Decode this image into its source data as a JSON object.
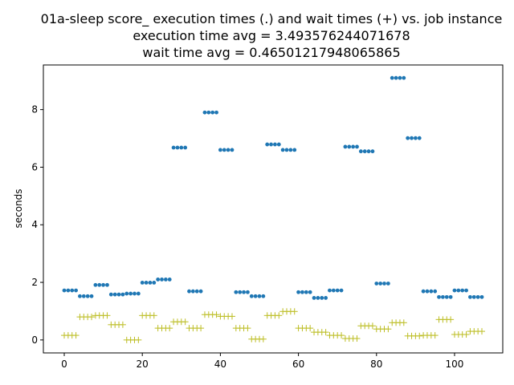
{
  "chart_data": {
    "type": "scatter",
    "title_lines": [
      "01a-sleep score_ execution times (.) and wait times (+) vs. job instance",
      "execution time avg = 3.493576244071678",
      "wait time avg = 0.46501217948065865"
    ],
    "xlabel": "",
    "ylabel": "seconds",
    "xlim": [
      -5.35,
      112.35
    ],
    "ylim": [
      -0.45,
      9.55
    ],
    "xticks": [
      0,
      20,
      40,
      60,
      80,
      100
    ],
    "yticks": [
      0,
      2,
      4,
      6,
      8
    ],
    "grid": false,
    "series": [
      {
        "marker": "dot",
        "color": "#1f77b4",
        "points": [
          [
            0,
            1.72
          ],
          [
            1,
            1.72
          ],
          [
            2,
            1.72
          ],
          [
            3,
            1.72
          ],
          [
            4,
            1.52
          ],
          [
            5,
            1.52
          ],
          [
            6,
            1.52
          ],
          [
            7,
            1.52
          ],
          [
            8,
            1.91
          ],
          [
            9,
            1.91
          ],
          [
            10,
            1.91
          ],
          [
            11,
            1.91
          ],
          [
            12,
            1.58
          ],
          [
            13,
            1.58
          ],
          [
            14,
            1.58
          ],
          [
            15,
            1.58
          ],
          [
            16,
            1.61
          ],
          [
            17,
            1.61
          ],
          [
            18,
            1.61
          ],
          [
            19,
            1.61
          ],
          [
            20,
            1.99
          ],
          [
            21,
            1.99
          ],
          [
            22,
            1.99
          ],
          [
            23,
            1.99
          ],
          [
            24,
            2.1
          ],
          [
            25,
            2.1
          ],
          [
            26,
            2.1
          ],
          [
            27,
            2.1
          ],
          [
            28,
            6.68
          ],
          [
            29,
            6.68
          ],
          [
            30,
            6.68
          ],
          [
            31,
            6.68
          ],
          [
            32,
            1.69
          ],
          [
            33,
            1.69
          ],
          [
            34,
            1.69
          ],
          [
            35,
            1.69
          ],
          [
            36,
            7.9
          ],
          [
            37,
            7.9
          ],
          [
            38,
            7.9
          ],
          [
            39,
            7.9
          ],
          [
            40,
            6.6
          ],
          [
            41,
            6.6
          ],
          [
            42,
            6.6
          ],
          [
            43,
            6.6
          ],
          [
            44,
            1.66
          ],
          [
            45,
            1.66
          ],
          [
            46,
            1.66
          ],
          [
            47,
            1.66
          ],
          [
            48,
            1.52
          ],
          [
            49,
            1.52
          ],
          [
            50,
            1.52
          ],
          [
            51,
            1.52
          ],
          [
            52,
            6.79
          ],
          [
            53,
            6.79
          ],
          [
            54,
            6.79
          ],
          [
            55,
            6.79
          ],
          [
            56,
            6.6
          ],
          [
            57,
            6.6
          ],
          [
            58,
            6.6
          ],
          [
            59,
            6.6
          ],
          [
            60,
            1.66
          ],
          [
            61,
            1.66
          ],
          [
            62,
            1.66
          ],
          [
            63,
            1.66
          ],
          [
            64,
            1.46
          ],
          [
            65,
            1.46
          ],
          [
            66,
            1.46
          ],
          [
            67,
            1.46
          ],
          [
            68,
            1.72
          ],
          [
            69,
            1.72
          ],
          [
            70,
            1.72
          ],
          [
            71,
            1.72
          ],
          [
            72,
            6.71
          ],
          [
            73,
            6.71
          ],
          [
            74,
            6.71
          ],
          [
            75,
            6.71
          ],
          [
            76,
            6.55
          ],
          [
            77,
            6.55
          ],
          [
            78,
            6.55
          ],
          [
            79,
            6.55
          ],
          [
            80,
            1.96
          ],
          [
            81,
            1.96
          ],
          [
            82,
            1.96
          ],
          [
            83,
            1.96
          ],
          [
            84,
            9.1
          ],
          [
            85,
            9.1
          ],
          [
            86,
            9.1
          ],
          [
            87,
            9.1
          ],
          [
            88,
            7.01
          ],
          [
            89,
            7.01
          ],
          [
            90,
            7.01
          ],
          [
            91,
            7.01
          ],
          [
            92,
            1.69
          ],
          [
            93,
            1.69
          ],
          [
            94,
            1.69
          ],
          [
            95,
            1.69
          ],
          [
            96,
            1.49
          ],
          [
            97,
            1.49
          ],
          [
            98,
            1.49
          ],
          [
            99,
            1.49
          ],
          [
            100,
            1.72
          ],
          [
            101,
            1.72
          ],
          [
            102,
            1.72
          ],
          [
            103,
            1.72
          ],
          [
            104,
            1.49
          ],
          [
            105,
            1.49
          ],
          [
            106,
            1.49
          ],
          [
            107,
            1.49
          ]
        ]
      },
      {
        "marker": "plus",
        "color": "#bcbd22",
        "points": [
          [
            0,
            0.16
          ],
          [
            1,
            0.16
          ],
          [
            2,
            0.16
          ],
          [
            3,
            0.16
          ],
          [
            4,
            0.8
          ],
          [
            5,
            0.8
          ],
          [
            6,
            0.8
          ],
          [
            7,
            0.8
          ],
          [
            8,
            0.85
          ],
          [
            9,
            0.85
          ],
          [
            10,
            0.85
          ],
          [
            11,
            0.85
          ],
          [
            12,
            0.53
          ],
          [
            13,
            0.53
          ],
          [
            14,
            0.53
          ],
          [
            15,
            0.53
          ],
          [
            16,
            0.0
          ],
          [
            17,
            0.0
          ],
          [
            18,
            0.0
          ],
          [
            19,
            0.0
          ],
          [
            20,
            0.85
          ],
          [
            21,
            0.85
          ],
          [
            22,
            0.85
          ],
          [
            23,
            0.85
          ],
          [
            24,
            0.41
          ],
          [
            25,
            0.41
          ],
          [
            26,
            0.41
          ],
          [
            27,
            0.41
          ],
          [
            28,
            0.63
          ],
          [
            29,
            0.63
          ],
          [
            30,
            0.63
          ],
          [
            31,
            0.63
          ],
          [
            32,
            0.41
          ],
          [
            33,
            0.41
          ],
          [
            34,
            0.41
          ],
          [
            35,
            0.41
          ],
          [
            36,
            0.88
          ],
          [
            37,
            0.88
          ],
          [
            38,
            0.88
          ],
          [
            39,
            0.88
          ],
          [
            40,
            0.82
          ],
          [
            41,
            0.82
          ],
          [
            42,
            0.82
          ],
          [
            43,
            0.82
          ],
          [
            44,
            0.41
          ],
          [
            45,
            0.41
          ],
          [
            46,
            0.41
          ],
          [
            47,
            0.41
          ],
          [
            48,
            0.03
          ],
          [
            49,
            0.03
          ],
          [
            50,
            0.03
          ],
          [
            51,
            0.03
          ],
          [
            52,
            0.85
          ],
          [
            53,
            0.85
          ],
          [
            54,
            0.85
          ],
          [
            55,
            0.85
          ],
          [
            56,
            0.99
          ],
          [
            57,
            0.99
          ],
          [
            58,
            0.99
          ],
          [
            59,
            0.99
          ],
          [
            60,
            0.41
          ],
          [
            61,
            0.41
          ],
          [
            62,
            0.41
          ],
          [
            63,
            0.41
          ],
          [
            64,
            0.27
          ],
          [
            65,
            0.27
          ],
          [
            66,
            0.27
          ],
          [
            67,
            0.27
          ],
          [
            68,
            0.16
          ],
          [
            69,
            0.16
          ],
          [
            70,
            0.16
          ],
          [
            71,
            0.16
          ],
          [
            72,
            0.05
          ],
          [
            73,
            0.05
          ],
          [
            74,
            0.05
          ],
          [
            75,
            0.05
          ],
          [
            76,
            0.49
          ],
          [
            77,
            0.49
          ],
          [
            78,
            0.49
          ],
          [
            79,
            0.49
          ],
          [
            80,
            0.38
          ],
          [
            81,
            0.38
          ],
          [
            82,
            0.38
          ],
          [
            83,
            0.38
          ],
          [
            84,
            0.6
          ],
          [
            85,
            0.6
          ],
          [
            86,
            0.6
          ],
          [
            87,
            0.6
          ],
          [
            88,
            0.14
          ],
          [
            89,
            0.14
          ],
          [
            90,
            0.14
          ],
          [
            91,
            0.14
          ],
          [
            92,
            0.16
          ],
          [
            93,
            0.16
          ],
          [
            94,
            0.16
          ],
          [
            95,
            0.16
          ],
          [
            96,
            0.71
          ],
          [
            97,
            0.71
          ],
          [
            98,
            0.71
          ],
          [
            99,
            0.71
          ],
          [
            100,
            0.19
          ],
          [
            101,
            0.19
          ],
          [
            102,
            0.19
          ],
          [
            103,
            0.19
          ],
          [
            104,
            0.3
          ],
          [
            105,
            0.3
          ],
          [
            106,
            0.3
          ],
          [
            107,
            0.3
          ]
        ]
      }
    ]
  }
}
